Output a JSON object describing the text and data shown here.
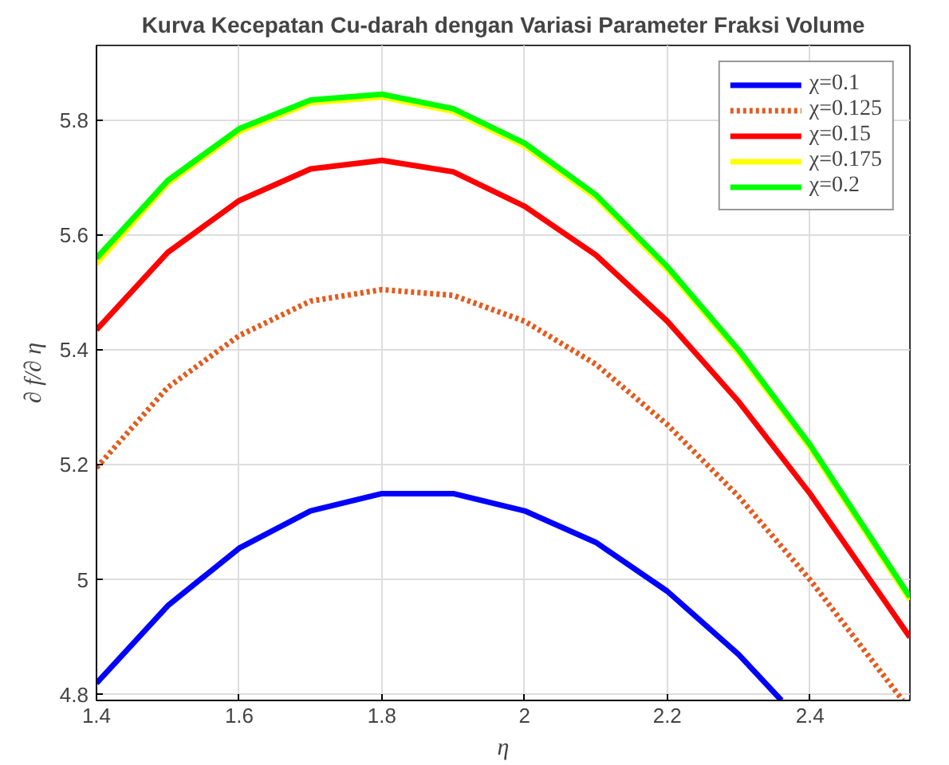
{
  "chart_data": {
    "type": "line",
    "title": "Kurva Kecepatan Cu-darah dengan Variasi Parameter Fraksi Volume",
    "xlabel": "η",
    "ylabel": "∂ f/∂ η",
    "xlim": [
      1.4,
      2.54
    ],
    "ylim": [
      4.79,
      5.93
    ],
    "xticks": [
      1.4,
      1.6,
      1.8,
      2,
      2.2,
      2.4
    ],
    "yticks": [
      4.8,
      5,
      5.2,
      5.4,
      5.6,
      5.8
    ],
    "grid": true,
    "legend": "top right",
    "marker": "none",
    "series": [
      {
        "name": "χ=0.1",
        "color": "#0000ff",
        "line_style": "solid",
        "x": [
          1.4,
          1.5,
          1.6,
          1.7,
          1.8,
          1.9,
          2.0,
          2.1,
          2.2,
          2.3,
          2.36
        ],
        "values": [
          4.82,
          4.955,
          5.055,
          5.12,
          5.15,
          5.15,
          5.12,
          5.065,
          4.98,
          4.87,
          4.79
        ]
      },
      {
        "name": "χ=0.125",
        "color": "#e35b1f",
        "line_style": "dotted",
        "x": [
          1.4,
          1.5,
          1.6,
          1.7,
          1.8,
          1.9,
          2.0,
          2.1,
          2.2,
          2.3,
          2.4,
          2.53
        ],
        "values": [
          5.195,
          5.335,
          5.425,
          5.485,
          5.505,
          5.495,
          5.45,
          5.375,
          5.27,
          5.145,
          5.0,
          4.79
        ]
      },
      {
        "name": "χ=0.15",
        "color": "#ff0000",
        "line_style": "solid",
        "x": [
          1.4,
          1.5,
          1.6,
          1.7,
          1.8,
          1.9,
          2.0,
          2.1,
          2.2,
          2.3,
          2.4,
          2.54
        ],
        "values": [
          5.435,
          5.57,
          5.66,
          5.715,
          5.73,
          5.71,
          5.65,
          5.565,
          5.45,
          5.31,
          5.15,
          4.9
        ]
      },
      {
        "name": "χ=0.175",
        "color": "#ffff00",
        "line_style": "solid",
        "x": [
          1.4,
          1.5,
          1.6,
          1.7,
          1.8,
          1.9,
          2.0,
          2.1,
          2.2,
          2.3,
          2.4,
          2.54
        ],
        "values": [
          5.55,
          5.69,
          5.78,
          5.83,
          5.84,
          5.815,
          5.755,
          5.665,
          5.54,
          5.395,
          5.23,
          4.965
        ]
      },
      {
        "name": "χ=0.2",
        "color": "#00ff00",
        "line_style": "solid",
        "x": [
          1.4,
          1.5,
          1.6,
          1.7,
          1.8,
          1.9,
          2.0,
          2.1,
          2.2,
          2.3,
          2.4,
          2.54
        ],
        "values": [
          5.56,
          5.695,
          5.785,
          5.835,
          5.845,
          5.82,
          5.76,
          5.67,
          5.545,
          5.4,
          5.235,
          4.97
        ]
      }
    ]
  }
}
